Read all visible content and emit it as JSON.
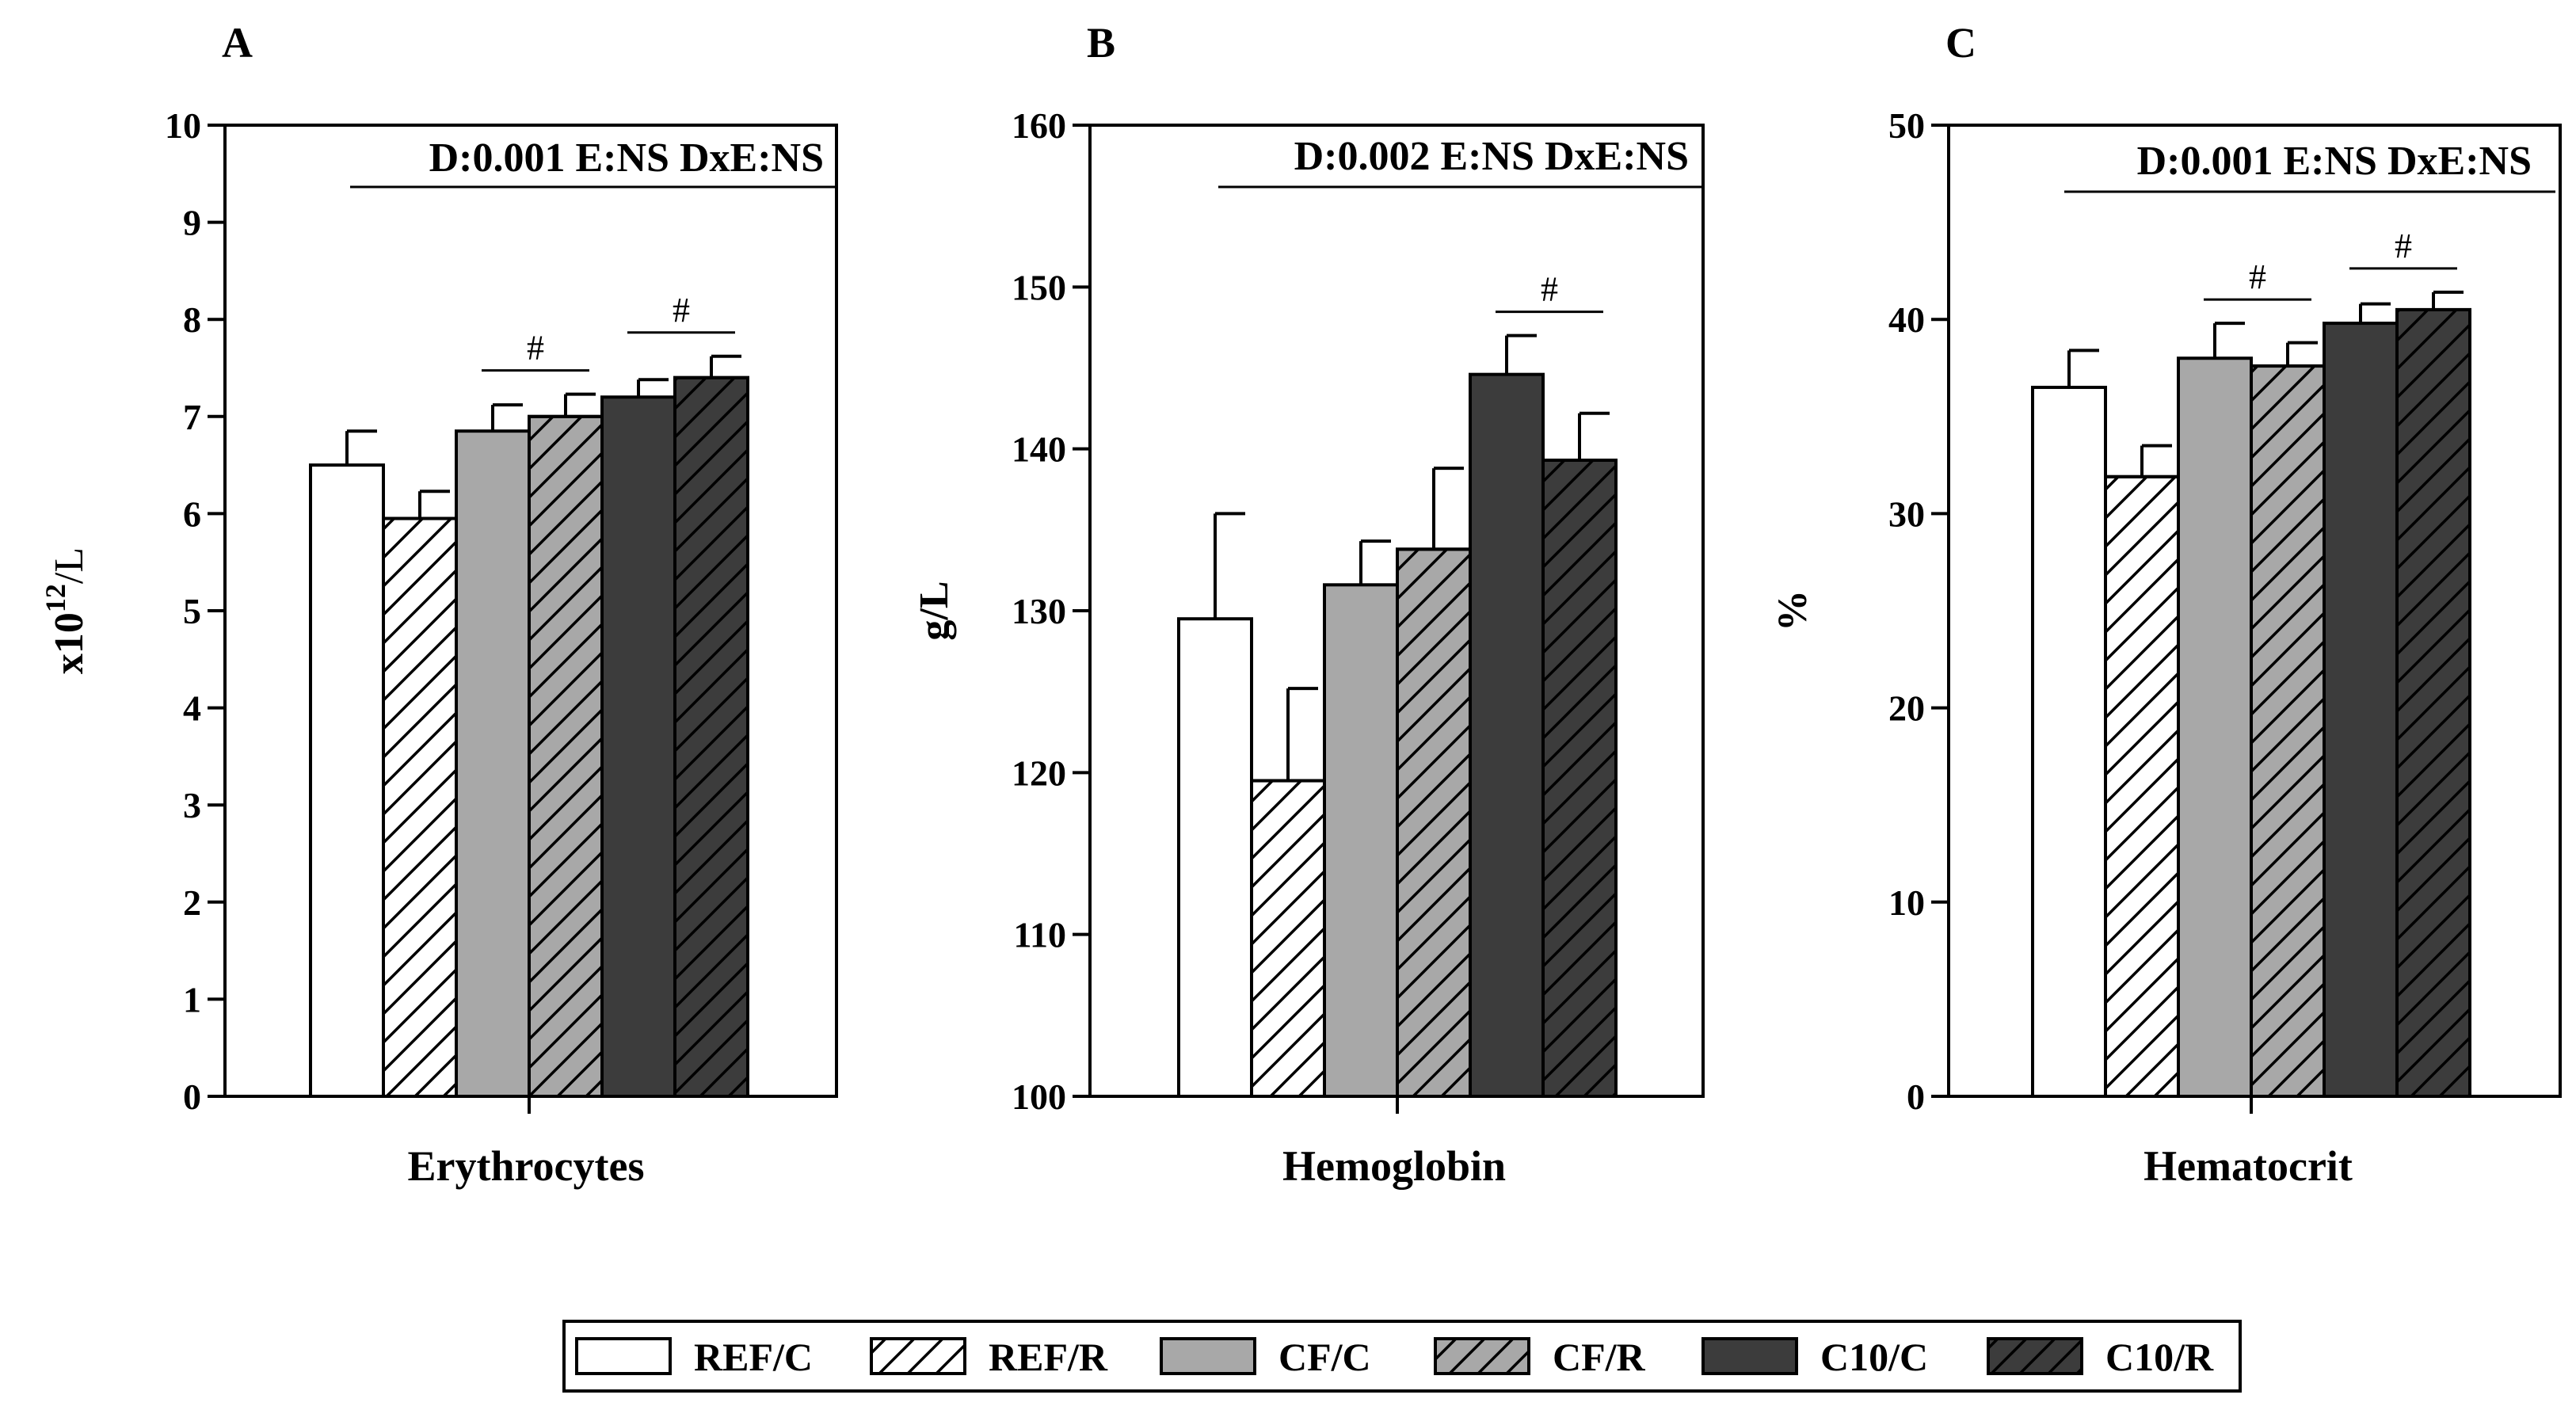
{
  "legend": [
    {
      "name": "REF/C",
      "fill": "#ffffff",
      "hatch": false
    },
    {
      "name": "REF/R",
      "fill": "#ffffff",
      "hatch": true
    },
    {
      "name": "CF/C",
      "fill": "#a8a8a8",
      "hatch": false
    },
    {
      "name": "CF/R",
      "fill": "#a8a8a8",
      "hatch": true
    },
    {
      "name": "C10/C",
      "fill": "#3c3c3c",
      "hatch": false
    },
    {
      "name": "C10/R",
      "fill": "#3c3c3c",
      "hatch": true
    }
  ],
  "chart_data": [
    {
      "type": "bar",
      "panel": "A",
      "category": "Erythrocytes",
      "ylabel_base": "x10",
      "ylabel_sup": "12",
      "ylabel_unit": "/L",
      "ylim": [
        0,
        10
      ],
      "yticks": [
        0,
        1,
        2,
        3,
        4,
        5,
        6,
        7,
        8,
        9,
        10
      ],
      "stats": "D:0.001 E:NS DxE:NS",
      "series": [
        {
          "name": "REF/C",
          "value": 6.5,
          "error": 0.35
        },
        {
          "name": "REF/R",
          "value": 5.95,
          "error": 0.28
        },
        {
          "name": "CF/C",
          "value": 6.85,
          "error": 0.27
        },
        {
          "name": "CF/R",
          "value": 7.0,
          "error": 0.23
        },
        {
          "name": "C10/C",
          "value": 7.2,
          "error": 0.18
        },
        {
          "name": "C10/R",
          "value": 7.4,
          "error": 0.22
        }
      ],
      "significance": [
        {
          "label": "#",
          "from": 2,
          "to": 3
        },
        {
          "label": "#",
          "from": 4,
          "to": 5
        }
      ]
    },
    {
      "type": "bar",
      "panel": "B",
      "category": "Hemoglobin",
      "ylabel_base": "g/L",
      "ylabel_sup": "",
      "ylabel_unit": "",
      "ylim": [
        100,
        160
      ],
      "yticks": [
        100,
        110,
        120,
        130,
        140,
        150,
        160
      ],
      "stats": "D:0.002 E:NS DxE:NS",
      "series": [
        {
          "name": "REF/C",
          "value": 129.5,
          "error": 6.5
        },
        {
          "name": "REF/R",
          "value": 119.5,
          "error": 5.7
        },
        {
          "name": "CF/C",
          "value": 131.6,
          "error": 2.7
        },
        {
          "name": "CF/R",
          "value": 133.8,
          "error": 5.0
        },
        {
          "name": "C10/C",
          "value": 144.6,
          "error": 2.4
        },
        {
          "name": "C10/R",
          "value": 139.3,
          "error": 2.9
        }
      ],
      "significance": [
        {
          "label": "#",
          "from": 4,
          "to": 5
        }
      ]
    },
    {
      "type": "bar",
      "panel": "C",
      "category": "Hematocrit",
      "ylabel_base": "%",
      "ylabel_sup": "",
      "ylabel_unit": "",
      "ylim": [
        0,
        50
      ],
      "yticks": [
        0,
        10,
        20,
        30,
        40,
        50
      ],
      "stats": "D:0.001 E:NS DxE:NS",
      "series": [
        {
          "name": "REF/C",
          "value": 36.5,
          "error": 1.9
        },
        {
          "name": "REF/R",
          "value": 31.9,
          "error": 1.6
        },
        {
          "name": "CF/C",
          "value": 38.0,
          "error": 1.8
        },
        {
          "name": "CF/R",
          "value": 37.6,
          "error": 1.2
        },
        {
          "name": "C10/C",
          "value": 39.8,
          "error": 1.0
        },
        {
          "name": "C10/R",
          "value": 40.5,
          "error": 0.9
        }
      ],
      "significance": [
        {
          "label": "#",
          "from": 2,
          "to": 3
        },
        {
          "label": "#",
          "from": 4,
          "to": 5
        }
      ]
    }
  ]
}
